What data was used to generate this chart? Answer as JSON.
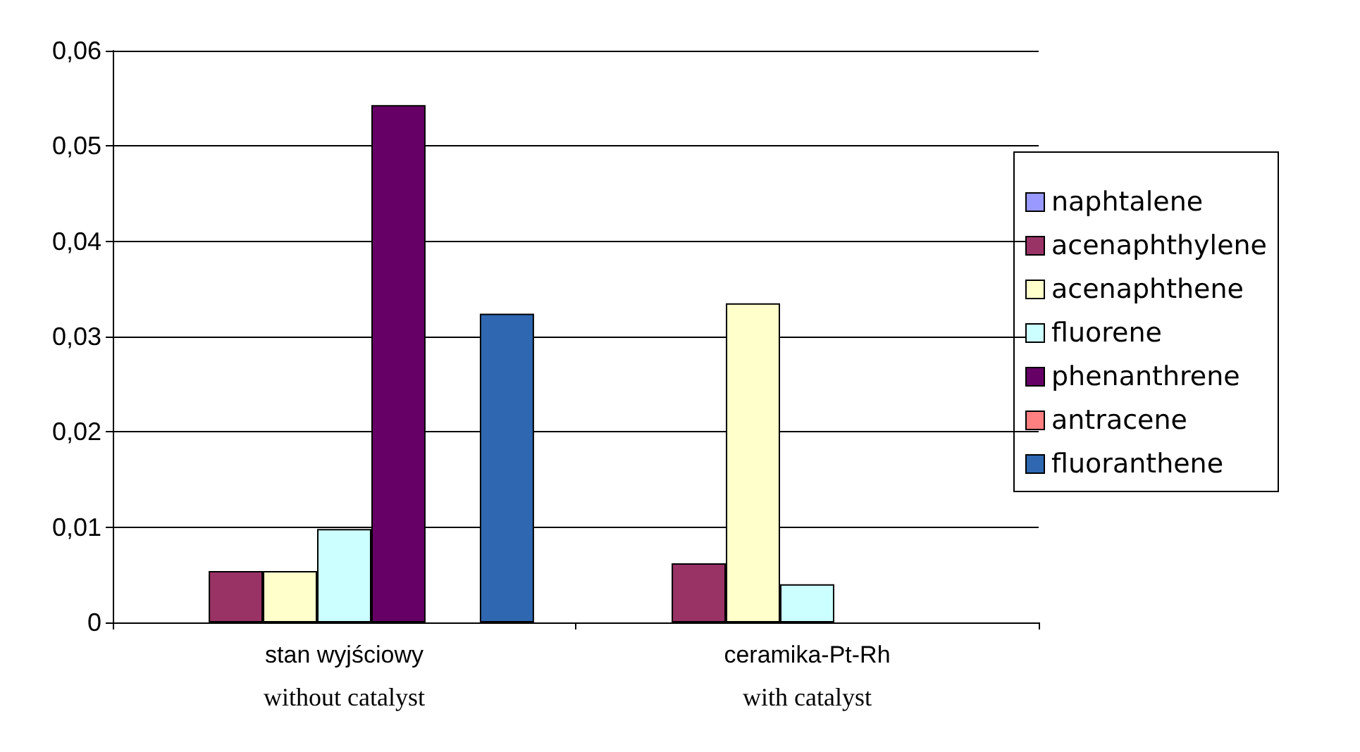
{
  "chart_data": {
    "type": "bar",
    "categories": [
      "stan wyjściowy\nwithout catalyst",
      "ceramika-Pt-Rh\nwith catalyst"
    ],
    "series": [
      {
        "name": "naphtalene",
        "color": "#9999ff",
        "values": [
          null,
          null
        ]
      },
      {
        "name": "acenaphthylene",
        "color": "#993366",
        "values": [
          0.0054,
          0.0062
        ]
      },
      {
        "name": "acenaphthene",
        "color": "#ffffcc",
        "values": [
          0.0054,
          0.0335
        ]
      },
      {
        "name": "fluorene",
        "color": "#ccffff",
        "values": [
          0.0098,
          0.004
        ]
      },
      {
        "name": "phenanthrene",
        "color": "#660066",
        "values": [
          0.0543,
          null
        ]
      },
      {
        "name": "antracene",
        "color": "#ff8080",
        "values": [
          null,
          null
        ]
      },
      {
        "name": "fluoranthene",
        "color": "#2f67b1",
        "values": [
          0.0324,
          null
        ]
      }
    ],
    "ylim": [
      0,
      0.06
    ],
    "yticks": [
      0,
      {
        "value": 0.01,
        "label": "0,01"
      },
      {
        "value": 0.02,
        "label": "0,02"
      },
      {
        "value": 0.03,
        "label": "0,03"
      },
      {
        "value": 0.04,
        "label": "0,04"
      },
      {
        "value": 0.05,
        "label": "0,05"
      },
      {
        "value": 0.06,
        "label": "0,06"
      }
    ],
    "grid": "y",
    "legend": "right"
  }
}
